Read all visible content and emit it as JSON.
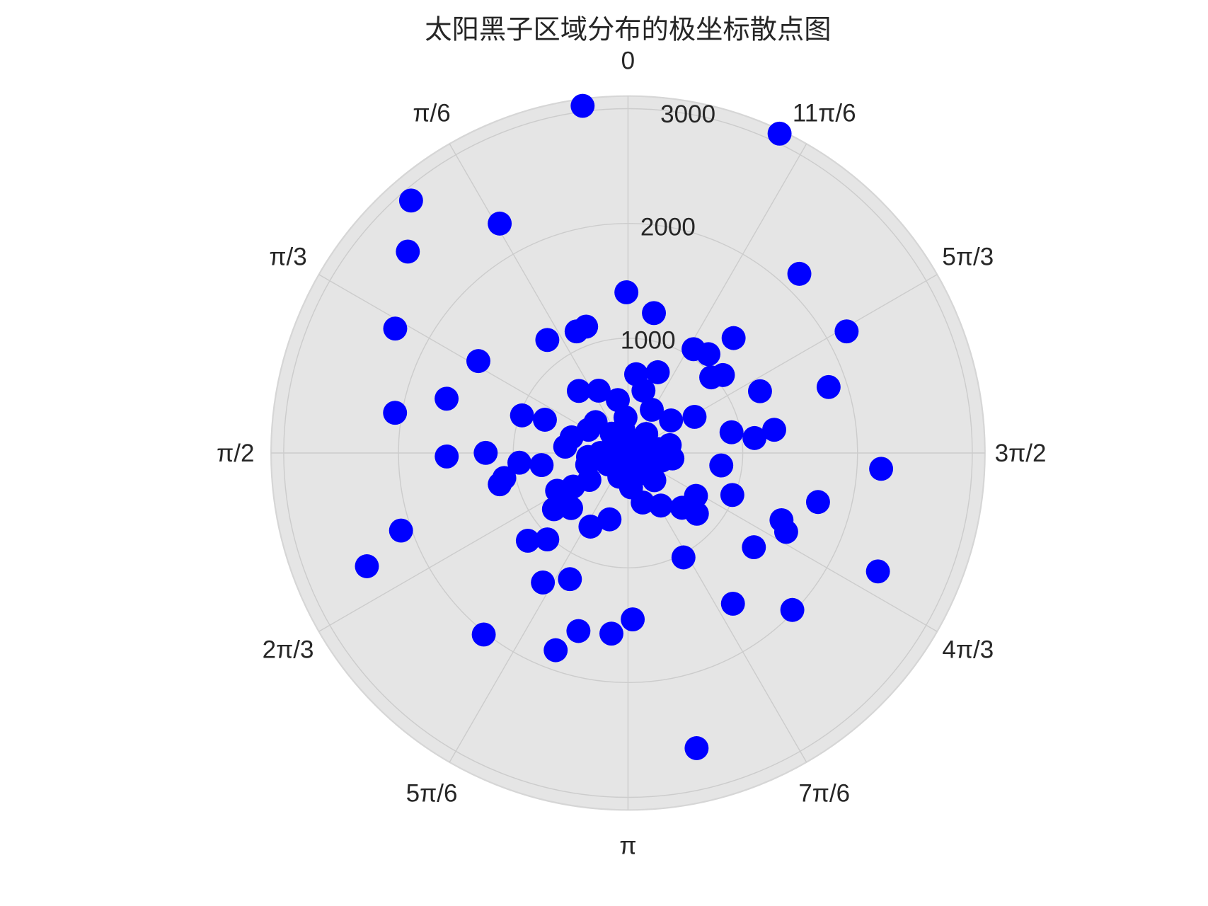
{
  "chart_data": {
    "type": "scatter",
    "projection": "polar",
    "title": "太阳黑子区域分布的极坐标散点图",
    "theta_zero_location": "top",
    "theta_direction": "counterclockwise",
    "theta_tick_labels": [
      "0",
      "π/6",
      "π/3",
      "π/2",
      "2π/3",
      "5π/6",
      "π",
      "7π/6",
      "4π/3",
      "3π/2",
      "5π/3",
      "11π/6"
    ],
    "r_ticks": [
      1000,
      2000,
      3000
    ],
    "r_tick_labels": [
      "1000",
      "2000",
      "3000"
    ],
    "rlim": [
      0,
      3110
    ],
    "grid": true,
    "marker_color": "#0000ff",
    "background_color": "#e5e5e5",
    "points": [
      {
        "theta": 0.13,
        "r": 3050
      },
      {
        "theta": 5.84,
        "r": 3080
      },
      {
        "theta": 0.71,
        "r": 2900
      },
      {
        "theta": 0.51,
        "r": 2290
      },
      {
        "theta": 0.83,
        "r": 2600
      },
      {
        "theta": 5.52,
        "r": 2160
      },
      {
        "theta": 0.01,
        "r": 1400
      },
      {
        "theta": 6.1,
        "r": 1240
      },
      {
        "theta": 1.08,
        "r": 2300
      },
      {
        "theta": 5.22,
        "r": 2180
      },
      {
        "theta": 0.32,
        "r": 1160
      },
      {
        "theta": 0.4,
        "r": 1150
      },
      {
        "theta": 0.62,
        "r": 1210
      },
      {
        "theta": 5.54,
        "r": 1360
      },
      {
        "theta": 5.72,
        "r": 1070
      },
      {
        "theta": 5.6,
        "r": 1110
      },
      {
        "theta": 1.02,
        "r": 1530
      },
      {
        "theta": 6.18,
        "r": 690
      },
      {
        "theta": 5.93,
        "r": 750
      },
      {
        "theta": 5.45,
        "r": 980
      },
      {
        "theta": 5.4,
        "r": 1070
      },
      {
        "theta": 5.03,
        "r": 1840
      },
      {
        "theta": 5.15,
        "r": 1270
      },
      {
        "theta": 0.67,
        "r": 690
      },
      {
        "theta": 0.44,
        "r": 600
      },
      {
        "theta": 6.04,
        "r": 560
      },
      {
        "theta": 0.19,
        "r": 470
      },
      {
        "theta": 1.28,
        "r": 1650
      },
      {
        "theta": 5.78,
        "r": 430
      },
      {
        "theta": 1.4,
        "r": 2060
      },
      {
        "theta": 1.23,
        "r": 980
      },
      {
        "theta": 1.19,
        "r": 780
      },
      {
        "theta": 0.07,
        "r": 310
      },
      {
        "theta": 5.36,
        "r": 470
      },
      {
        "theta": 5.21,
        "r": 660
      },
      {
        "theta": 0.81,
        "r": 390
      },
      {
        "theta": 1.04,
        "r": 400
      },
      {
        "theta": 4.91,
        "r": 920
      },
      {
        "theta": 4.87,
        "r": 1290
      },
      {
        "theta": 4.83,
        "r": 1110
      },
      {
        "theta": 1.3,
        "r": 510
      },
      {
        "theta": 1.47,
        "r": 550
      },
      {
        "theta": 4.65,
        "r": 2210
      },
      {
        "theta": 1.59,
        "r": 1580
      },
      {
        "theta": 1.57,
        "r": 1240
      },
      {
        "theta": 1.66,
        "r": 950
      },
      {
        "theta": 1.71,
        "r": 760
      },
      {
        "theta": 1.77,
        "r": 1100
      },
      {
        "theta": 1.81,
        "r": 1150
      },
      {
        "theta": 4.58,
        "r": 820
      },
      {
        "theta": 4.59,
        "r": 390
      },
      {
        "theta": 4.33,
        "r": 980
      },
      {
        "theta": 4.15,
        "r": 700
      },
      {
        "theta": 1.85,
        "r": 370
      },
      {
        "theta": 2.06,
        "r": 700
      },
      {
        "theta": 2.12,
        "r": 560
      },
      {
        "theta": 2.18,
        "r": 410
      },
      {
        "theta": 4.46,
        "r": 1710
      },
      {
        "theta": 2.22,
        "r": 810
      },
      {
        "theta": 2.34,
        "r": 690
      },
      {
        "theta": 3.43,
        "r": 450
      },
      {
        "theta": 3.7,
        "r": 540
      },
      {
        "theta": 3.92,
        "r": 670
      },
      {
        "theta": 3.99,
        "r": 800
      },
      {
        "theta": 2.87,
        "r": 600
      },
      {
        "theta": 2.67,
        "r": 720
      },
      {
        "theta": 4.3,
        "r": 1460
      },
      {
        "theta": 4.25,
        "r": 1540
      },
      {
        "theta": 1.9,
        "r": 2090
      },
      {
        "theta": 2.29,
        "r": 1160
      },
      {
        "theta": 2.39,
        "r": 1030
      },
      {
        "theta": 4.07,
        "r": 1370
      },
      {
        "theta": 3.63,
        "r": 1030
      },
      {
        "theta": 1.98,
        "r": 2480
      },
      {
        "theta": 4.27,
        "r": 2410
      },
      {
        "theta": 2.56,
        "r": 1350
      },
      {
        "theta": 2.71,
        "r": 1210
      },
      {
        "theta": 3.75,
        "r": 1600
      },
      {
        "theta": 3.95,
        "r": 1980
      },
      {
        "theta": 3.17,
        "r": 1450
      },
      {
        "theta": 3.05,
        "r": 1580
      },
      {
        "theta": 2.87,
        "r": 1610
      },
      {
        "theta": 2.47,
        "r": 2020
      },
      {
        "theta": 2.79,
        "r": 1830
      },
      {
        "theta": 3.37,
        "r": 2640
      },
      {
        "theta": 1.34,
        "r": 150
      },
      {
        "theta": 0.54,
        "r": 80
      },
      {
        "theta": 5.74,
        "r": 120
      },
      {
        "theta": 5.11,
        "r": 180
      },
      {
        "theta": 4.84,
        "r": 270
      },
      {
        "theta": 4.49,
        "r": 300
      },
      {
        "theta": 4.11,
        "r": 240
      },
      {
        "theta": 3.43,
        "r": 210
      },
      {
        "theta": 2.79,
        "r": 220
      },
      {
        "theta": 2.09,
        "r": 200
      },
      {
        "theta": 1.57,
        "r": 240
      },
      {
        "theta": 3.14,
        "r": 70
      },
      {
        "theta": 4.46,
        "r": 130
      },
      {
        "theta": 5.52,
        "r": 230
      },
      {
        "theta": 0.7,
        "r": 220
      },
      {
        "theta": 1.67,
        "r": 350
      },
      {
        "theta": 3.91,
        "r": 330
      },
      {
        "theta": 3.23,
        "r": 300
      },
      {
        "theta": 0.2,
        "r": 210
      },
      {
        "theta": 4.9,
        "r": 370
      }
    ]
  }
}
